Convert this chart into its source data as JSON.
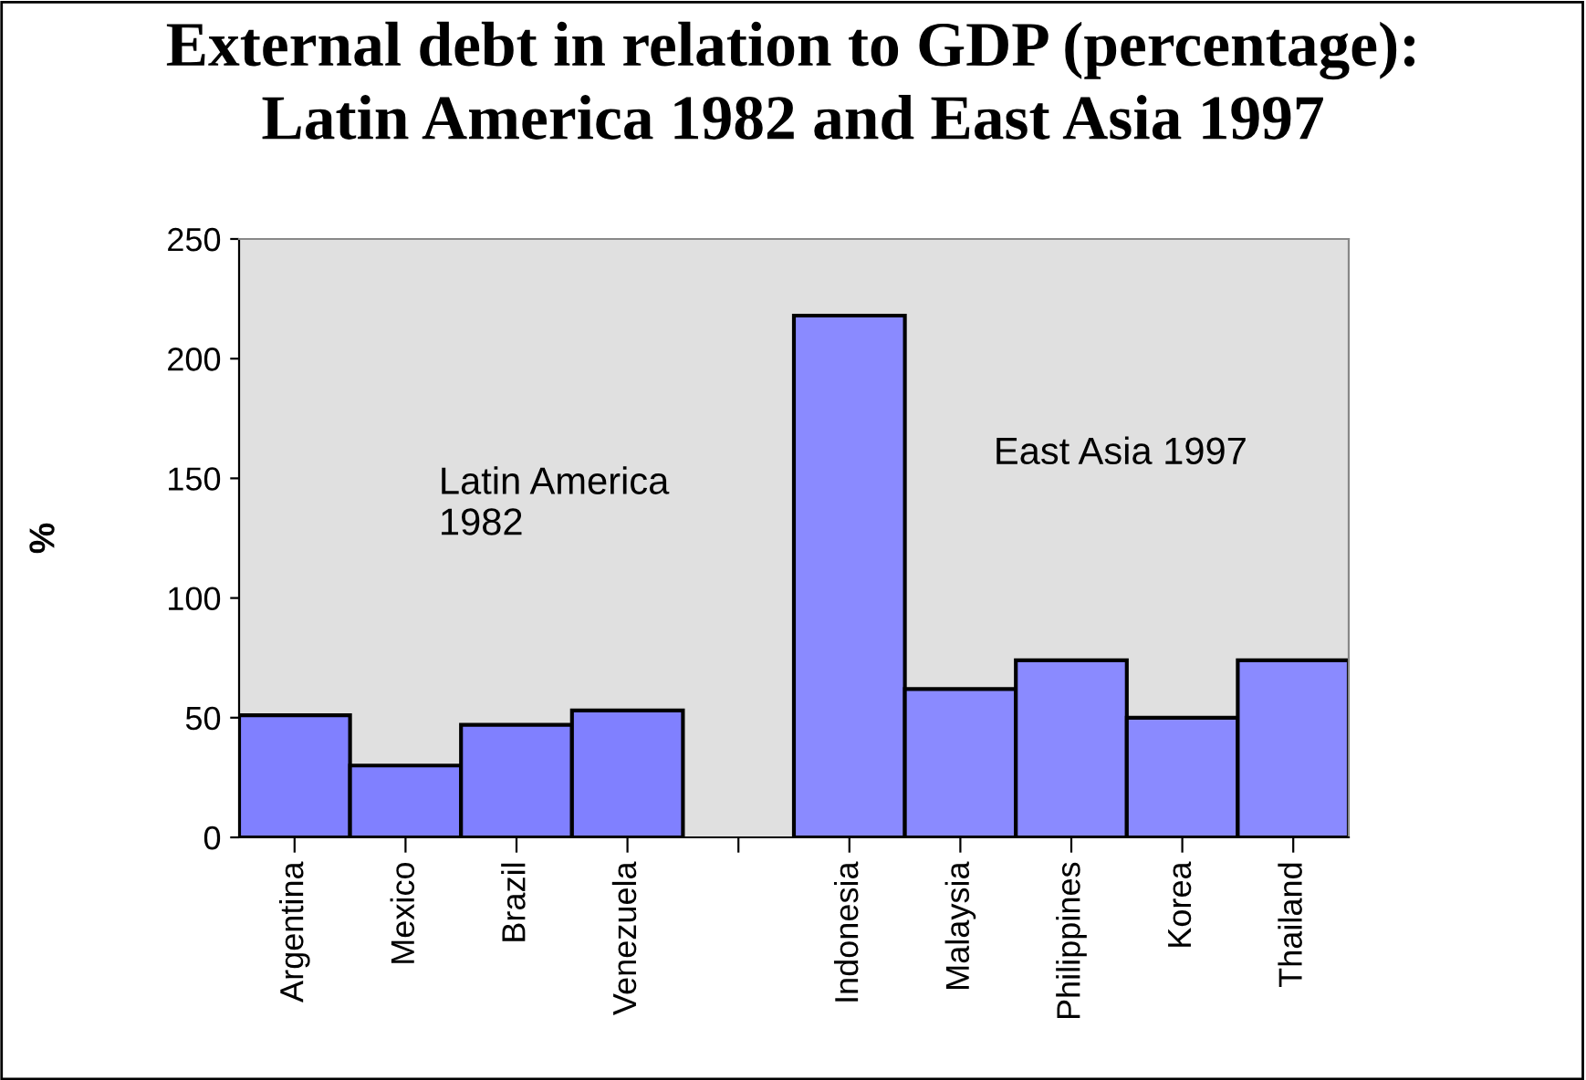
{
  "chart_data": {
    "type": "bar",
    "title": "External debt in relation to GDP (percentage):\nLatin America 1982 and East Asia 1997",
    "ylabel": "%",
    "categories": [
      "Argentina",
      "Mexico",
      "Brazil",
      "Venezuela",
      null,
      "Indonesia",
      "Malaysia",
      "Philippines",
      "Korea",
      "Thailand"
    ],
    "values": [
      51,
      30,
      47,
      53,
      null,
      218,
      62,
      74,
      50,
      74
    ],
    "colors": [
      "#8080ff",
      "#8080ff",
      "#8080ff",
      "#8080ff",
      "#8080ff",
      "#8a8aff",
      "#8a8aff",
      "#8a8aff",
      "#8a8aff",
      "#8a8aff"
    ],
    "annotations": [
      "Latin America\n1982",
      "East Asia 1997"
    ],
    "ylim": [
      0,
      250
    ],
    "yticks": [
      0,
      50,
      100,
      150,
      200,
      250
    ],
    "grid": false,
    "legend": false
  }
}
